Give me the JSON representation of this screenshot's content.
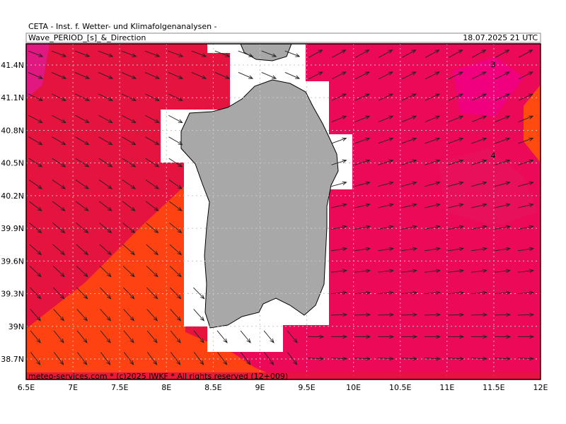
{
  "header": {
    "model": "CETA - Inst. f. Wetter- und Klimafolgenanalysen -",
    "title": "Wave_PERIOD_[s]_&_Direction",
    "date": "18.07.2025 21 UTC"
  },
  "map": {
    "lat_labels": [
      "41.4N",
      "41.1N",
      "40.8N",
      "40.5N",
      "40.2N",
      "39.9N",
      "39.6N",
      "39.3N",
      "39N",
      "38.7N"
    ],
    "lon_labels": [
      "6.5E",
      "7E",
      "7.5E",
      "8E",
      "8.5E",
      "9E",
      "9.5E",
      "10E",
      "10.5E",
      "11E",
      "11.5E",
      "12E"
    ],
    "contour_labels": [
      "3",
      "4"
    ],
    "footer": "meteo-services.com * (c)2025 IWKF * All rights reserved (12+009)"
  }
}
